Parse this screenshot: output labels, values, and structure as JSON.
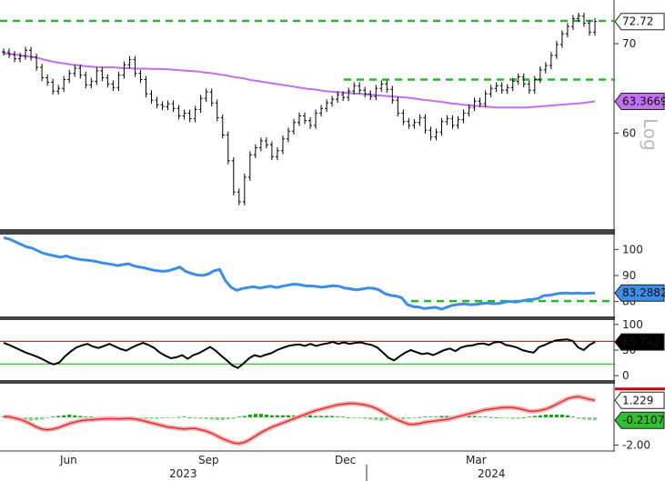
{
  "chart_data": [
    {
      "type": "ohlc",
      "panel": "price",
      "y_scale": "log",
      "ylim": [
        51,
        75
      ],
      "yticks": [
        "60",
        "70"
      ],
      "last_value": "72.72",
      "ma_value": "63.3669",
      "ma_color": "#c070f0",
      "corner_label": "Log",
      "close": [
        69,
        68.7,
        68.2,
        68.5,
        69.2,
        68.4,
        67.2,
        66,
        65.5,
        64.5,
        64.8,
        65.8,
        66.5,
        67.1,
        66.3,
        65.2,
        65.6,
        66.8,
        66,
        65.3,
        64.9,
        66.3,
        67.5,
        68.1,
        66.5,
        65.8,
        64.2,
        63.5,
        63,
        62.8,
        63.1,
        62.6,
        61.8,
        62.1,
        61.5,
        62.5,
        63.7,
        64.4,
        63.2,
        61.6,
        59.8,
        57.2,
        54.2,
        53.3,
        55.6,
        57.8,
        58.5,
        59.2,
        58.8,
        57.6,
        58.2,
        59.4,
        60.2,
        61.1,
        61.8,
        61.3,
        60.8,
        62.1,
        62.6,
        63.2,
        63.6,
        64.1,
        63.8,
        64.5,
        65.1,
        64.6,
        64.2,
        63.9,
        64.8,
        65.3,
        64.7,
        63.5,
        62.1,
        61.2,
        60.8,
        61.1,
        61.6,
        60.3,
        59.6,
        60.1,
        61.2,
        61.5,
        60.8,
        61.4,
        62.1,
        62.7,
        63.4,
        63.1,
        64.2,
        64.8,
        65.1,
        64.6,
        64.9,
        65.6,
        66.1,
        65.3,
        64.6,
        65.8,
        66.9,
        67.4,
        68.6,
        69.9,
        71.2,
        72.1,
        73.1,
        73.4,
        72.5,
        71.4,
        72.72
      ],
      "ma": [
        68.8,
        68.8,
        68.7,
        68.6,
        68.5,
        68.4,
        68.3,
        68.1,
        67.95,
        67.8,
        67.7,
        67.6,
        67.5,
        67.45,
        67.35,
        67.3,
        67.25,
        67.2,
        67.2,
        67.2,
        67.15,
        67.1,
        67.1,
        67.05,
        67.05,
        67.05,
        67,
        67,
        67,
        66.95,
        66.9,
        66.85,
        66.8,
        66.75,
        66.7,
        66.6,
        66.55,
        66.45,
        66.35,
        66.25,
        66.1,
        66,
        65.9,
        65.75,
        65.65,
        65.55,
        65.45,
        65.35,
        65.25,
        65.15,
        65.05,
        64.95,
        64.85,
        64.75,
        64.7,
        64.6,
        64.5,
        64.45,
        64.4,
        64.35,
        64.3,
        64.25,
        64.2,
        64.15,
        64.1,
        64.05,
        64,
        63.95,
        63.9,
        63.85,
        63.8,
        63.75,
        63.65,
        63.55,
        63.5,
        63.4,
        63.35,
        63.25,
        63.15,
        63.1,
        63,
        62.95,
        62.9,
        62.85,
        62.8,
        62.75,
        62.7,
        62.7,
        62.7,
        62.7,
        62.7,
        62.7,
        62.75,
        62.8,
        62.85,
        62.9,
        62.95,
        63,
        63.05,
        63.1,
        63.15,
        63.2,
        63.3,
        63.3669
      ]
    },
    {
      "type": "line",
      "panel": "rsi_blue",
      "ylim": [
        75,
        105
      ],
      "yticks": [
        "100",
        "90",
        "80"
      ],
      "last_value": "83.2882",
      "color": "#3b8de8",
      "values": [
        104.5,
        104,
        103,
        102,
        101,
        100.5,
        99.5,
        98.5,
        98,
        97.5,
        97,
        97.5,
        96.8,
        96.3,
        96,
        95.8,
        95.5,
        95,
        94.6,
        94.3,
        93.8,
        94.2,
        94.5,
        93.6,
        93.2,
        92.8,
        92.2,
        91.8,
        91.6,
        91.8,
        92.5,
        93.2,
        91.6,
        90.8,
        90.2,
        90,
        90.6,
        91.8,
        92.3,
        88,
        85.5,
        84.3,
        85,
        85.4,
        85.7,
        85.2,
        85.6,
        85.9,
        85.4,
        85.9,
        86.3,
        86.7,
        86.5,
        86.1,
        86,
        85.8,
        85.5,
        85.8,
        86.1,
        85.9,
        85.2,
        84.9,
        84.5,
        84.8,
        85.2,
        85.1,
        84.5,
        83.1,
        82.4,
        82.1,
        81.5,
        78.8,
        78.1,
        77.9,
        77.3,
        77.6,
        77.8,
        77.1,
        77.9,
        78.6,
        78.9,
        79.1,
        78.8,
        78.9,
        79.2,
        79.5,
        79.2,
        79.3,
        79.7,
        80.1,
        79.8,
        80.2,
        80.6,
        80.8,
        81.2,
        82.3,
        82.4,
        82.9,
        83.2,
        83.3,
        83.1,
        83.3,
        83.1,
        83.2,
        83.2882
      ]
    },
    {
      "type": "line",
      "panel": "oscillator",
      "ylim": [
        -5,
        105
      ],
      "yticks": [
        "100",
        "50",
        "0"
      ],
      "last_value": "65.742",
      "color": "#000000",
      "values": [
        64,
        60,
        55,
        50,
        45,
        41,
        37,
        32,
        26,
        22,
        26,
        38,
        47,
        55,
        59,
        62,
        57,
        54,
        58,
        62,
        57,
        52,
        49,
        55,
        60,
        64,
        60,
        54,
        45,
        39,
        34,
        36,
        40,
        33,
        40,
        44,
        50,
        56,
        49,
        39,
        30,
        20,
        15,
        24,
        34,
        40,
        37,
        41,
        44,
        50,
        54,
        58,
        60,
        61,
        58,
        62,
        58,
        61,
        63,
        66,
        62,
        65,
        62,
        64,
        65,
        62,
        60,
        55,
        45,
        35,
        30,
        38,
        45,
        50,
        46,
        42,
        44,
        40,
        45,
        50,
        53,
        48,
        55,
        58,
        59,
        62,
        63,
        60,
        65,
        66,
        60,
        58,
        55,
        50,
        47,
        45,
        56,
        60,
        65,
        69,
        70,
        71,
        68,
        55,
        50,
        60,
        65.742
      ],
      "ref_lines": [
        67,
        23
      ],
      "ref_colors": [
        "#cc0000",
        "#16a016"
      ]
    },
    {
      "type": "line+histogram",
      "panel": "macd",
      "ylim": [
        -2.3,
        2.3
      ],
      "yticks": [
        "-2.00"
      ],
      "last_values": [
        "1.229",
        "-0.2107"
      ],
      "line_color": "#e03030",
      "hist_pos_color": "#16a016",
      "line": [
        0.05,
        0.04,
        -0.05,
        -0.15,
        -0.3,
        -0.5,
        -0.7,
        -0.85,
        -0.9,
        -0.85,
        -0.75,
        -0.6,
        -0.45,
        -0.35,
        -0.25,
        -0.2,
        -0.18,
        -0.15,
        -0.12,
        -0.1,
        -0.1,
        -0.12,
        -0.1,
        -0.08,
        -0.12,
        -0.2,
        -0.3,
        -0.4,
        -0.5,
        -0.6,
        -0.7,
        -0.75,
        -0.8,
        -0.85,
        -0.8,
        -0.8,
        -0.9,
        -1,
        -1.15,
        -1.35,
        -1.55,
        -1.7,
        -1.85,
        -1.9,
        -1.8,
        -1.6,
        -1.35,
        -1.1,
        -0.9,
        -0.7,
        -0.55,
        -0.4,
        -0.25,
        -0.1,
        0.05,
        0.2,
        0.35,
        0.5,
        0.6,
        0.7,
        0.8,
        0.9,
        0.95,
        1,
        1,
        0.95,
        0.9,
        0.8,
        0.65,
        0.45,
        0.2,
        0,
        -0.2,
        -0.35,
        -0.5,
        -0.5,
        -0.45,
        -0.35,
        -0.3,
        -0.25,
        -0.2,
        -0.15,
        -0.05,
        0.05,
        0.15,
        0.25,
        0.35,
        0.45,
        0.55,
        0.6,
        0.65,
        0.7,
        0.72,
        0.7,
        0.65,
        0.55,
        0.45,
        0.45,
        0.5,
        0.6,
        0.75,
        0.95,
        1.15,
        1.35,
        1.45,
        1.5,
        1.4,
        1.3,
        1.229
      ],
      "hist": [
        0.05,
        -0.05,
        -0.1,
        -0.2,
        -0.25,
        -0.25,
        -0.2,
        -0.15,
        -0.05,
        0.05,
        0.1,
        0.15,
        0.2,
        0.15,
        0.1,
        0.05,
        0.05,
        0.02,
        0.02,
        0,
        -0.02,
        0.02,
        0.02,
        -0.05,
        -0.08,
        -0.1,
        -0.1,
        -0.1,
        -0.1,
        -0.08,
        -0.05,
        -0.05,
        0.02,
        0.05,
        0,
        -0.08,
        -0.1,
        -0.12,
        -0.15,
        -0.2,
        -0.2,
        -0.15,
        -0.1,
        0.05,
        0.1,
        0.2,
        0.25,
        0.25,
        0.2,
        0.15,
        0.15,
        0.15,
        0.15,
        0.15,
        0.15,
        0.15,
        0.15,
        0.1,
        0.1,
        0.1,
        0.1,
        0.05,
        0.05,
        0,
        -0.02,
        -0.05,
        -0.1,
        -0.15,
        -0.2,
        -0.25,
        -0.2,
        -0.2,
        -0.15,
        -0.12,
        -0.1,
        -0.05,
        0.02,
        0.05,
        0.05,
        0.05,
        0.1,
        0.1,
        0.1,
        0.1,
        0.1,
        0.1,
        0.1,
        0.05,
        0.05,
        0.02,
        0,
        -0.02,
        -0.05,
        -0.1,
        -0.1,
        0,
        0.05,
        0.1,
        0.15,
        0.2,
        0.2,
        0.2,
        0.2,
        0.15,
        0.05,
        -0.1,
        -0.15,
        -0.2,
        -0.2107
      ]
    }
  ],
  "x_axis": {
    "months": [
      "Jun",
      "Sep",
      "Dec",
      "Mar"
    ],
    "years": [
      "2023",
      "2024"
    ]
  },
  "levels": {
    "resistance_top": 72.8,
    "resistance_mid": 65.8,
    "rsi_support": 80.2,
    "level_color": "#22bb22"
  }
}
